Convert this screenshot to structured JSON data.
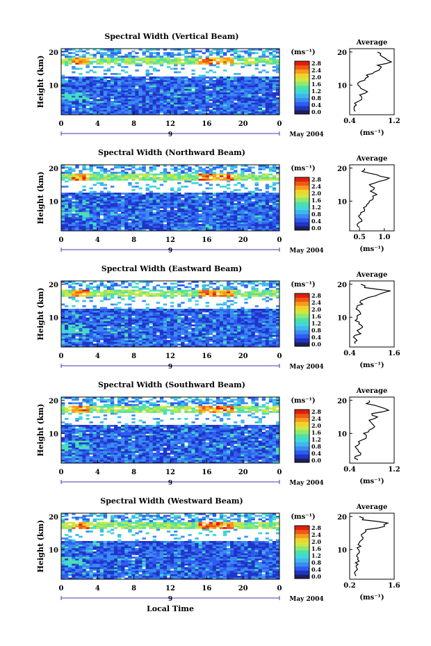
{
  "figure": {
    "ylabel": "Height (km)",
    "units_label": "(ms⁻¹)",
    "date_label": "May 2004",
    "xlabel": "Local Time",
    "avg_title": "Average",
    "day_label": "9"
  },
  "colorscale": {
    "ticks": [
      "2.8",
      "2.4",
      "2.0",
      "1.6",
      "1.2",
      "0.8",
      "0.4",
      "0.0"
    ],
    "colors": [
      "#1f1f5a",
      "#1f34c8",
      "#2f5cf0",
      "#3a8cf0",
      "#41b6ee",
      "#3fd8d8",
      "#4fe0a8",
      "#8fe870",
      "#d0e840",
      "#f4d22a",
      "#f79a1e",
      "#ef5a14",
      "#e01e10"
    ]
  },
  "chart_data": [
    {
      "type": "heatmap",
      "title": "Spectral Width (Vertical Beam)",
      "x_ticks": [
        "0",
        "4",
        "8",
        "12",
        "16",
        "20",
        "0"
      ],
      "xlim": [
        0,
        24
      ],
      "y_ticks": [
        "20",
        "10"
      ],
      "ylim": [
        1,
        21
      ],
      "colorbar_range": [
        0.0,
        3.0
      ],
      "profile": {
        "title": "Average",
        "xlim": [
          0.4,
          1.2
        ],
        "x_ticks": [
          "0.4",
          "1.2"
        ],
        "y_ticks": [
          "20",
          "10"
        ],
        "ylim": [
          1,
          21
        ],
        "height": [
          2,
          3,
          4,
          5,
          6,
          7,
          8,
          9,
          10,
          11,
          12,
          13,
          14,
          15,
          16,
          17,
          18,
          19,
          20
        ],
        "width": [
          0.5,
          0.48,
          0.52,
          0.55,
          0.62,
          0.58,
          0.72,
          0.6,
          0.55,
          0.58,
          0.68,
          0.7,
          0.85,
          0.95,
          0.9,
          1.15,
          1.05,
          0.95,
          0.9
        ]
      }
    },
    {
      "type": "heatmap",
      "title": "Spectral Width (Northward Beam)",
      "x_ticks": [
        "0",
        "4",
        "8",
        "12",
        "16",
        "20",
        "0"
      ],
      "xlim": [
        0,
        24
      ],
      "y_ticks": [
        "20",
        "10"
      ],
      "ylim": [
        1,
        21
      ],
      "colorbar_range": [
        0.0,
        3.0
      ],
      "profile": {
        "title": "Average",
        "xlim": [
          0.3,
          1.2
        ],
        "x_ticks": [
          "0.5",
          "1.0"
        ],
        "y_ticks": [
          "20",
          "10"
        ],
        "ylim": [
          1,
          21
        ],
        "height": [
          2,
          3,
          4,
          5,
          6,
          7,
          8,
          9,
          10,
          11,
          12,
          13,
          14,
          15,
          16,
          17,
          18,
          19,
          20
        ],
        "width": [
          0.5,
          0.45,
          0.55,
          0.5,
          0.52,
          0.6,
          0.58,
          0.65,
          0.7,
          0.78,
          0.85,
          0.72,
          0.8,
          0.7,
          0.9,
          1.1,
          0.85,
          0.55,
          0.6
        ]
      }
    },
    {
      "type": "heatmap",
      "title": "Spectral Width (Eastward Beam)",
      "x_ticks": [
        "0",
        "4",
        "8",
        "12",
        "16",
        "20",
        "0"
      ],
      "xlim": [
        0,
        24
      ],
      "y_ticks": [
        "20",
        "10"
      ],
      "ylim": [
        1,
        21
      ],
      "colorbar_range": [
        0.0,
        3.0
      ],
      "profile": {
        "title": "Average",
        "xlim": [
          0.4,
          1.6
        ],
        "x_ticks": [
          "0.4",
          "1.6"
        ],
        "y_ticks": [
          "20",
          "10"
        ],
        "ylim": [
          1,
          21
        ],
        "height": [
          2,
          3,
          4,
          5,
          6,
          7,
          8,
          9,
          10,
          11,
          12,
          13,
          14,
          15,
          16,
          17,
          18,
          19,
          20
        ],
        "width": [
          0.55,
          0.6,
          0.5,
          0.7,
          0.6,
          0.75,
          0.65,
          0.55,
          0.6,
          0.7,
          0.65,
          0.6,
          0.75,
          0.7,
          0.9,
          1.2,
          1.5,
          0.8,
          0.7
        ]
      }
    },
    {
      "type": "heatmap",
      "title": "Spectral Width (Southward Beam)",
      "x_ticks": [
        "0",
        "4",
        "8",
        "12",
        "16",
        "20",
        "0"
      ],
      "xlim": [
        0,
        24
      ],
      "y_ticks": [
        "20",
        "10"
      ],
      "ylim": [
        1,
        21
      ],
      "colorbar_range": [
        0.0,
        3.0
      ],
      "profile": {
        "title": "Average",
        "xlim": [
          0.4,
          1.2
        ],
        "x_ticks": [
          "0.4",
          "1.2"
        ],
        "y_ticks": [
          "20",
          "10"
        ],
        "ylim": [
          1,
          21
        ],
        "height": [
          2,
          3,
          4,
          5,
          6,
          7,
          8,
          9,
          10,
          11,
          12,
          13,
          14,
          15,
          16,
          17,
          18,
          19,
          20
        ],
        "width": [
          0.55,
          0.5,
          0.6,
          0.55,
          0.5,
          0.58,
          0.62,
          0.7,
          0.65,
          0.75,
          0.85,
          0.8,
          0.75,
          0.9,
          0.8,
          1.1,
          0.95,
          0.7,
          0.75
        ]
      }
    },
    {
      "type": "heatmap",
      "title": "Spectral Width (Westward Beam)",
      "x_ticks": [
        "0",
        "4",
        "8",
        "12",
        "16",
        "20",
        "0"
      ],
      "xlim": [
        0,
        24
      ],
      "y_ticks": [
        "20",
        "10"
      ],
      "ylim": [
        1,
        21
      ],
      "colorbar_range": [
        0.0,
        3.0
      ],
      "profile": {
        "title": "Average",
        "xlim": [
          0.2,
          1.6
        ],
        "x_ticks": [
          "0.2",
          "1.6"
        ],
        "y_ticks": [
          "20",
          "10"
        ],
        "ylim": [
          1,
          21
        ],
        "height": [
          2,
          3,
          4,
          5,
          6,
          7,
          8,
          9,
          10,
          11,
          12,
          13,
          14,
          15,
          16,
          17,
          18,
          19,
          20
        ],
        "width": [
          0.4,
          0.35,
          0.45,
          0.4,
          0.38,
          0.45,
          0.42,
          0.5,
          0.48,
          0.55,
          0.5,
          0.6,
          0.58,
          0.65,
          0.7,
          1.3,
          1.4,
          0.6,
          0.5
        ]
      }
    }
  ]
}
